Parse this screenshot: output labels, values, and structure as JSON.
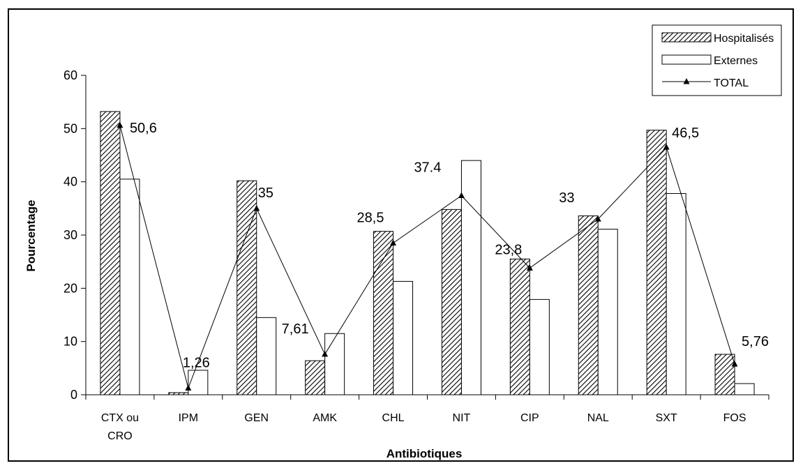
{
  "chart_data": {
    "type": "bar",
    "xlabel": "Antibiotiques",
    "ylabel": "Pourcentage",
    "ylim": [
      0,
      60
    ],
    "yticks": [
      "0",
      "10",
      "20",
      "30",
      "40",
      "50",
      "60"
    ],
    "grid": false,
    "legend_position": "top-right",
    "categories": [
      "CTX ou CRO",
      "IPM",
      "GEN",
      "AMK",
      "CHL",
      "NIT",
      "CIP",
      "NAL",
      "SXT",
      "FOS"
    ],
    "category_lines": [
      [
        "CTX ou",
        "CRO"
      ],
      [
        "IPM"
      ],
      [
        "GEN"
      ],
      [
        "AMK"
      ],
      [
        "CHL"
      ],
      [
        "NIT"
      ],
      [
        "CIP"
      ],
      [
        "NAL"
      ],
      [
        "SXT"
      ],
      [
        "FOS"
      ]
    ],
    "series": [
      {
        "name": "Hospitalisés",
        "kind": "bar",
        "pattern": "hatched",
        "values": [
          53.2,
          0.4,
          40.2,
          6.4,
          30.7,
          34.8,
          25.5,
          33.6,
          49.7,
          7.6
        ]
      },
      {
        "name": "Externes",
        "kind": "bar",
        "pattern": "white",
        "values": [
          40.5,
          4.6,
          14.5,
          11.5,
          21.3,
          44.0,
          17.9,
          31.1,
          37.8,
          2.1
        ]
      },
      {
        "name": "TOTAL",
        "kind": "line",
        "marker": "triangle",
        "values": [
          50.6,
          1.26,
          35,
          7.61,
          28.5,
          37.4,
          23.8,
          33,
          46.5,
          5.76
        ]
      }
    ],
    "data_labels": [
      "50,6",
      "1,26",
      "35",
      "7,61",
      "28,5",
      "37.4",
      "23,8",
      "33",
      "46,5",
      "5,76"
    ]
  }
}
